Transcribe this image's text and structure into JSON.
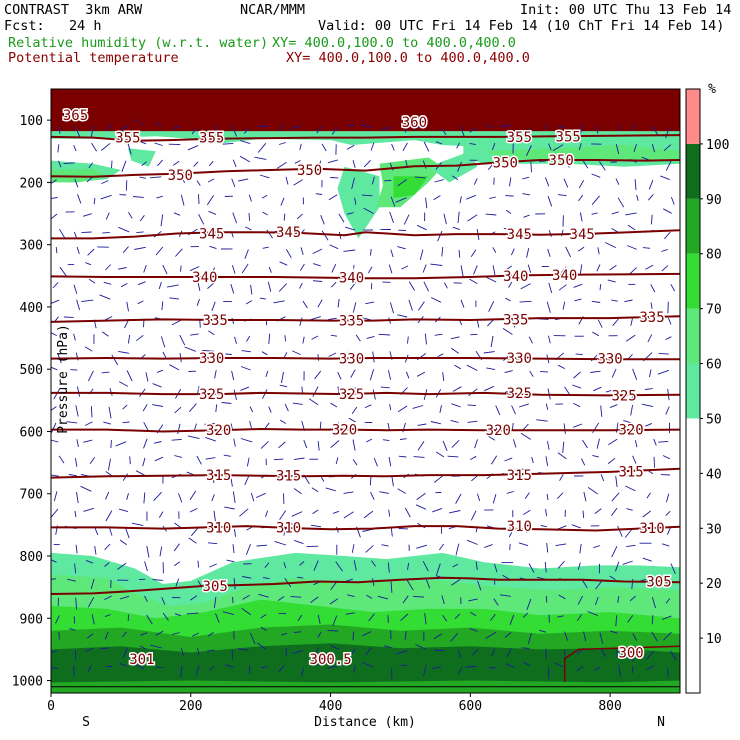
{
  "header": {
    "model": "CONTRAST  3km ARW",
    "org": "NCAR/MMM",
    "init": "Init: 00 UTC Thu 13 Feb 14",
    "fcst": "Fcst:   24 h",
    "valid": "Valid: 00 UTC Fri 14 Feb 14 (10 ChT Fri 14 Feb 14)",
    "field1": "Relative humidity (w.r.t. water)",
    "field1_xy": "XY= 400.0,100.0 to 400.0,400.0",
    "field2": "Potential temperature",
    "field2_xy": "XY= 400.0,100.0 to 400.0,400.0"
  },
  "colors": {
    "rh_50_60": "#5ee8a0",
    "rh_60_70": "#5ee87a",
    "rh_70_80": "#33dd33",
    "rh_80_90": "#22a822",
    "rh_90_100": "#0f6e1e",
    "rh_100_plus": "#ff8a8a",
    "theta_line": "#7a0000",
    "wind_vector": "#1a1a9a"
  },
  "chart_data": {
    "type": "contour",
    "xlabel": "Distance (km)",
    "ylabel": "Pressure (hPa)",
    "xlim": [
      0,
      900
    ],
    "ylim": [
      1020,
      50
    ],
    "x_ticks": [
      "0",
      "200",
      "400",
      "600",
      "800"
    ],
    "y_ticks": [
      "100",
      "200",
      "300",
      "400",
      "500",
      "600",
      "700",
      "800",
      "900",
      "1000"
    ],
    "endpoints": {
      "left": "S",
      "right": "N"
    },
    "colorbar": {
      "unit": "%",
      "levels": [
        "10",
        "20",
        "30",
        "40",
        "50",
        "60",
        "70",
        "80",
        "90",
        "100"
      ],
      "bands": [
        {
          "from": 50,
          "to": 60,
          "color": "#5ee8a0"
        },
        {
          "from": 60,
          "to": 70,
          "color": "#5ee87a"
        },
        {
          "from": 70,
          "to": 80,
          "color": "#33dd33"
        },
        {
          "from": 80,
          "to": 90,
          "color": "#22a822"
        },
        {
          "from": 90,
          "to": 100,
          "color": "#0f6e1e"
        },
        {
          "from": 100,
          "to": 110,
          "color": "#ff8a8a"
        }
      ]
    },
    "theta_contours": [
      {
        "level": 360,
        "points": [
          [
            0,
            103
          ],
          [
            100,
            104
          ],
          [
            200,
            103
          ],
          [
            300,
            104
          ],
          [
            400,
            102
          ],
          [
            500,
            103
          ],
          [
            600,
            104
          ],
          [
            700,
            103
          ],
          [
            800,
            104
          ],
          [
            900,
            104
          ]
        ]
      },
      {
        "level": 355,
        "points": [
          [
            0,
            127
          ],
          [
            60,
            128
          ],
          [
            120,
            133
          ],
          [
            170,
            132
          ],
          [
            230,
            130
          ],
          [
            300,
            129
          ],
          [
            380,
            128
          ],
          [
            450,
            128
          ],
          [
            520,
            127
          ],
          [
            580,
            127
          ],
          [
            650,
            127
          ],
          [
            720,
            126
          ],
          [
            800,
            125
          ],
          [
            900,
            124
          ]
        ]
      },
      {
        "level": 350,
        "points": [
          [
            0,
            190
          ],
          [
            60,
            191
          ],
          [
            120,
            188
          ],
          [
            180,
            186
          ],
          [
            250,
            182
          ],
          [
            320,
            180
          ],
          [
            380,
            178
          ],
          [
            450,
            181
          ],
          [
            520,
            174
          ],
          [
            580,
            173
          ],
          [
            640,
            168
          ],
          [
            700,
            164
          ],
          [
            780,
            164
          ],
          [
            850,
            165
          ],
          [
            900,
            164
          ]
        ]
      },
      {
        "level": 345,
        "points": [
          [
            0,
            290
          ],
          [
            60,
            290
          ],
          [
            120,
            287
          ],
          [
            180,
            282
          ],
          [
            240,
            280
          ],
          [
            300,
            280
          ],
          [
            350,
            281
          ],
          [
            420,
            285
          ],
          [
            450,
            280
          ],
          [
            520,
            285
          ],
          [
            580,
            283
          ],
          [
            640,
            283
          ],
          [
            700,
            284
          ],
          [
            780,
            282
          ],
          [
            900,
            277
          ]
        ]
      },
      {
        "level": 340,
        "points": [
          [
            0,
            351
          ],
          [
            80,
            352
          ],
          [
            160,
            352
          ],
          [
            240,
            352
          ],
          [
            320,
            352
          ],
          [
            400,
            353
          ],
          [
            450,
            354
          ],
          [
            520,
            354
          ],
          [
            600,
            352
          ],
          [
            680,
            349
          ],
          [
            760,
            348
          ],
          [
            900,
            347
          ]
        ]
      },
      {
        "level": 335,
        "points": [
          [
            0,
            424
          ],
          [
            80,
            422
          ],
          [
            160,
            420
          ],
          [
            240,
            421
          ],
          [
            320,
            421
          ],
          [
            400,
            422
          ],
          [
            460,
            422
          ],
          [
            520,
            420
          ],
          [
            600,
            421
          ],
          [
            700,
            418
          ],
          [
            800,
            418
          ],
          [
            900,
            415
          ]
        ]
      },
      {
        "level": 330,
        "points": [
          [
            0,
            483
          ],
          [
            80,
            482
          ],
          [
            160,
            483
          ],
          [
            240,
            482
          ],
          [
            320,
            482
          ],
          [
            400,
            483
          ],
          [
            460,
            482
          ],
          [
            520,
            482
          ],
          [
            600,
            482
          ],
          [
            700,
            483
          ],
          [
            800,
            484
          ],
          [
            900,
            484
          ]
        ]
      },
      {
        "level": 325,
        "points": [
          [
            0,
            538
          ],
          [
            80,
            538
          ],
          [
            160,
            540
          ],
          [
            240,
            540
          ],
          [
            300,
            538
          ],
          [
            360,
            539
          ],
          [
            420,
            540
          ],
          [
            480,
            538
          ],
          [
            540,
            540
          ],
          [
            620,
            538
          ],
          [
            700,
            541
          ],
          [
            800,
            542
          ],
          [
            900,
            541
          ]
        ]
      },
      {
        "level": 320,
        "points": [
          [
            0,
            597
          ],
          [
            80,
            597
          ],
          [
            160,
            600
          ],
          [
            240,
            598
          ],
          [
            300,
            596
          ],
          [
            360,
            597
          ],
          [
            420,
            597
          ],
          [
            480,
            598
          ],
          [
            540,
            597
          ],
          [
            620,
            598
          ],
          [
            700,
            598
          ],
          [
            800,
            598
          ],
          [
            900,
            597
          ]
        ]
      },
      {
        "level": 315,
        "points": [
          [
            0,
            674
          ],
          [
            80,
            672
          ],
          [
            160,
            671
          ],
          [
            240,
            670
          ],
          [
            300,
            671
          ],
          [
            360,
            672
          ],
          [
            420,
            671
          ],
          [
            480,
            672
          ],
          [
            540,
            670
          ],
          [
            620,
            670
          ],
          [
            700,
            668
          ],
          [
            800,
            665
          ],
          [
            900,
            660
          ]
        ]
      },
      {
        "level": 310,
        "points": [
          [
            0,
            754
          ],
          [
            80,
            754
          ],
          [
            160,
            756
          ],
          [
            220,
            754
          ],
          [
            280,
            752
          ],
          [
            340,
            755
          ],
          [
            400,
            757
          ],
          [
            460,
            756
          ],
          [
            520,
            752
          ],
          [
            580,
            752
          ],
          [
            640,
            756
          ],
          [
            700,
            757
          ],
          [
            780,
            759
          ],
          [
            840,
            756
          ],
          [
            900,
            753
          ]
        ]
      },
      {
        "level": 305,
        "points": [
          [
            0,
            861
          ],
          [
            60,
            860
          ],
          [
            120,
            856
          ],
          [
            170,
            852
          ],
          [
            220,
            848
          ],
          [
            260,
            847
          ],
          [
            320,
            845
          ],
          [
            380,
            841
          ],
          [
            440,
            842
          ],
          [
            500,
            838
          ],
          [
            560,
            835
          ],
          [
            600,
            836
          ],
          [
            640,
            838
          ],
          [
            700,
            838
          ],
          [
            760,
            838
          ],
          [
            820,
            841
          ],
          [
            900,
            842
          ]
        ]
      }
    ],
    "theta_labels": [
      {
        "text": "365",
        "x": 35,
        "p": 92
      },
      {
        "text": "360",
        "x": 520,
        "p": 103
      },
      {
        "text": "355",
        "x": 110,
        "p": 128
      },
      {
        "text": "355",
        "x": 230,
        "p": 128
      },
      {
        "text": "355",
        "x": 670,
        "p": 127
      },
      {
        "text": "355",
        "x": 740,
        "p": 126
      },
      {
        "text": "350",
        "x": 185,
        "p": 188
      },
      {
        "text": "350",
        "x": 370,
        "p": 180
      },
      {
        "text": "350",
        "x": 650,
        "p": 168
      },
      {
        "text": "350",
        "x": 730,
        "p": 164
      },
      {
        "text": "345",
        "x": 230,
        "p": 282
      },
      {
        "text": "345",
        "x": 340,
        "p": 280
      },
      {
        "text": "345",
        "x": 670,
        "p": 283
      },
      {
        "text": "345",
        "x": 760,
        "p": 283
      },
      {
        "text": "340",
        "x": 220,
        "p": 352
      },
      {
        "text": "340",
        "x": 430,
        "p": 353
      },
      {
        "text": "340",
        "x": 665,
        "p": 350
      },
      {
        "text": "340",
        "x": 735,
        "p": 349
      },
      {
        "text": "335",
        "x": 235,
        "p": 421
      },
      {
        "text": "335",
        "x": 430,
        "p": 422
      },
      {
        "text": "335",
        "x": 665,
        "p": 420
      },
      {
        "text": "335",
        "x": 860,
        "p": 416
      },
      {
        "text": "330",
        "x": 230,
        "p": 482
      },
      {
        "text": "330",
        "x": 430,
        "p": 483
      },
      {
        "text": "330",
        "x": 670,
        "p": 482
      },
      {
        "text": "330",
        "x": 800,
        "p": 483
      },
      {
        "text": "325",
        "x": 230,
        "p": 540
      },
      {
        "text": "325",
        "x": 430,
        "p": 540
      },
      {
        "text": "325",
        "x": 670,
        "p": 538
      },
      {
        "text": "325",
        "x": 820,
        "p": 542
      },
      {
        "text": "320",
        "x": 240,
        "p": 598
      },
      {
        "text": "320",
        "x": 420,
        "p": 597
      },
      {
        "text": "320",
        "x": 640,
        "p": 598
      },
      {
        "text": "320",
        "x": 830,
        "p": 597
      },
      {
        "text": "315",
        "x": 240,
        "p": 670
      },
      {
        "text": "315",
        "x": 340,
        "p": 671
      },
      {
        "text": "315",
        "x": 670,
        "p": 670
      },
      {
        "text": "315",
        "x": 830,
        "p": 664
      },
      {
        "text": "310",
        "x": 240,
        "p": 754
      },
      {
        "text": "310",
        "x": 340,
        "p": 754
      },
      {
        "text": "310",
        "x": 670,
        "p": 752
      },
      {
        "text": "310",
        "x": 860,
        "p": 755
      },
      {
        "text": "305",
        "x": 235,
        "p": 848
      },
      {
        "text": "305",
        "x": 870,
        "p": 841
      },
      {
        "text": "301",
        "x": 130,
        "p": 965
      },
      {
        "text": "300.5",
        "x": 400,
        "p": 965
      },
      {
        "text": "300",
        "x": 830,
        "p": 955
      }
    ]
  }
}
